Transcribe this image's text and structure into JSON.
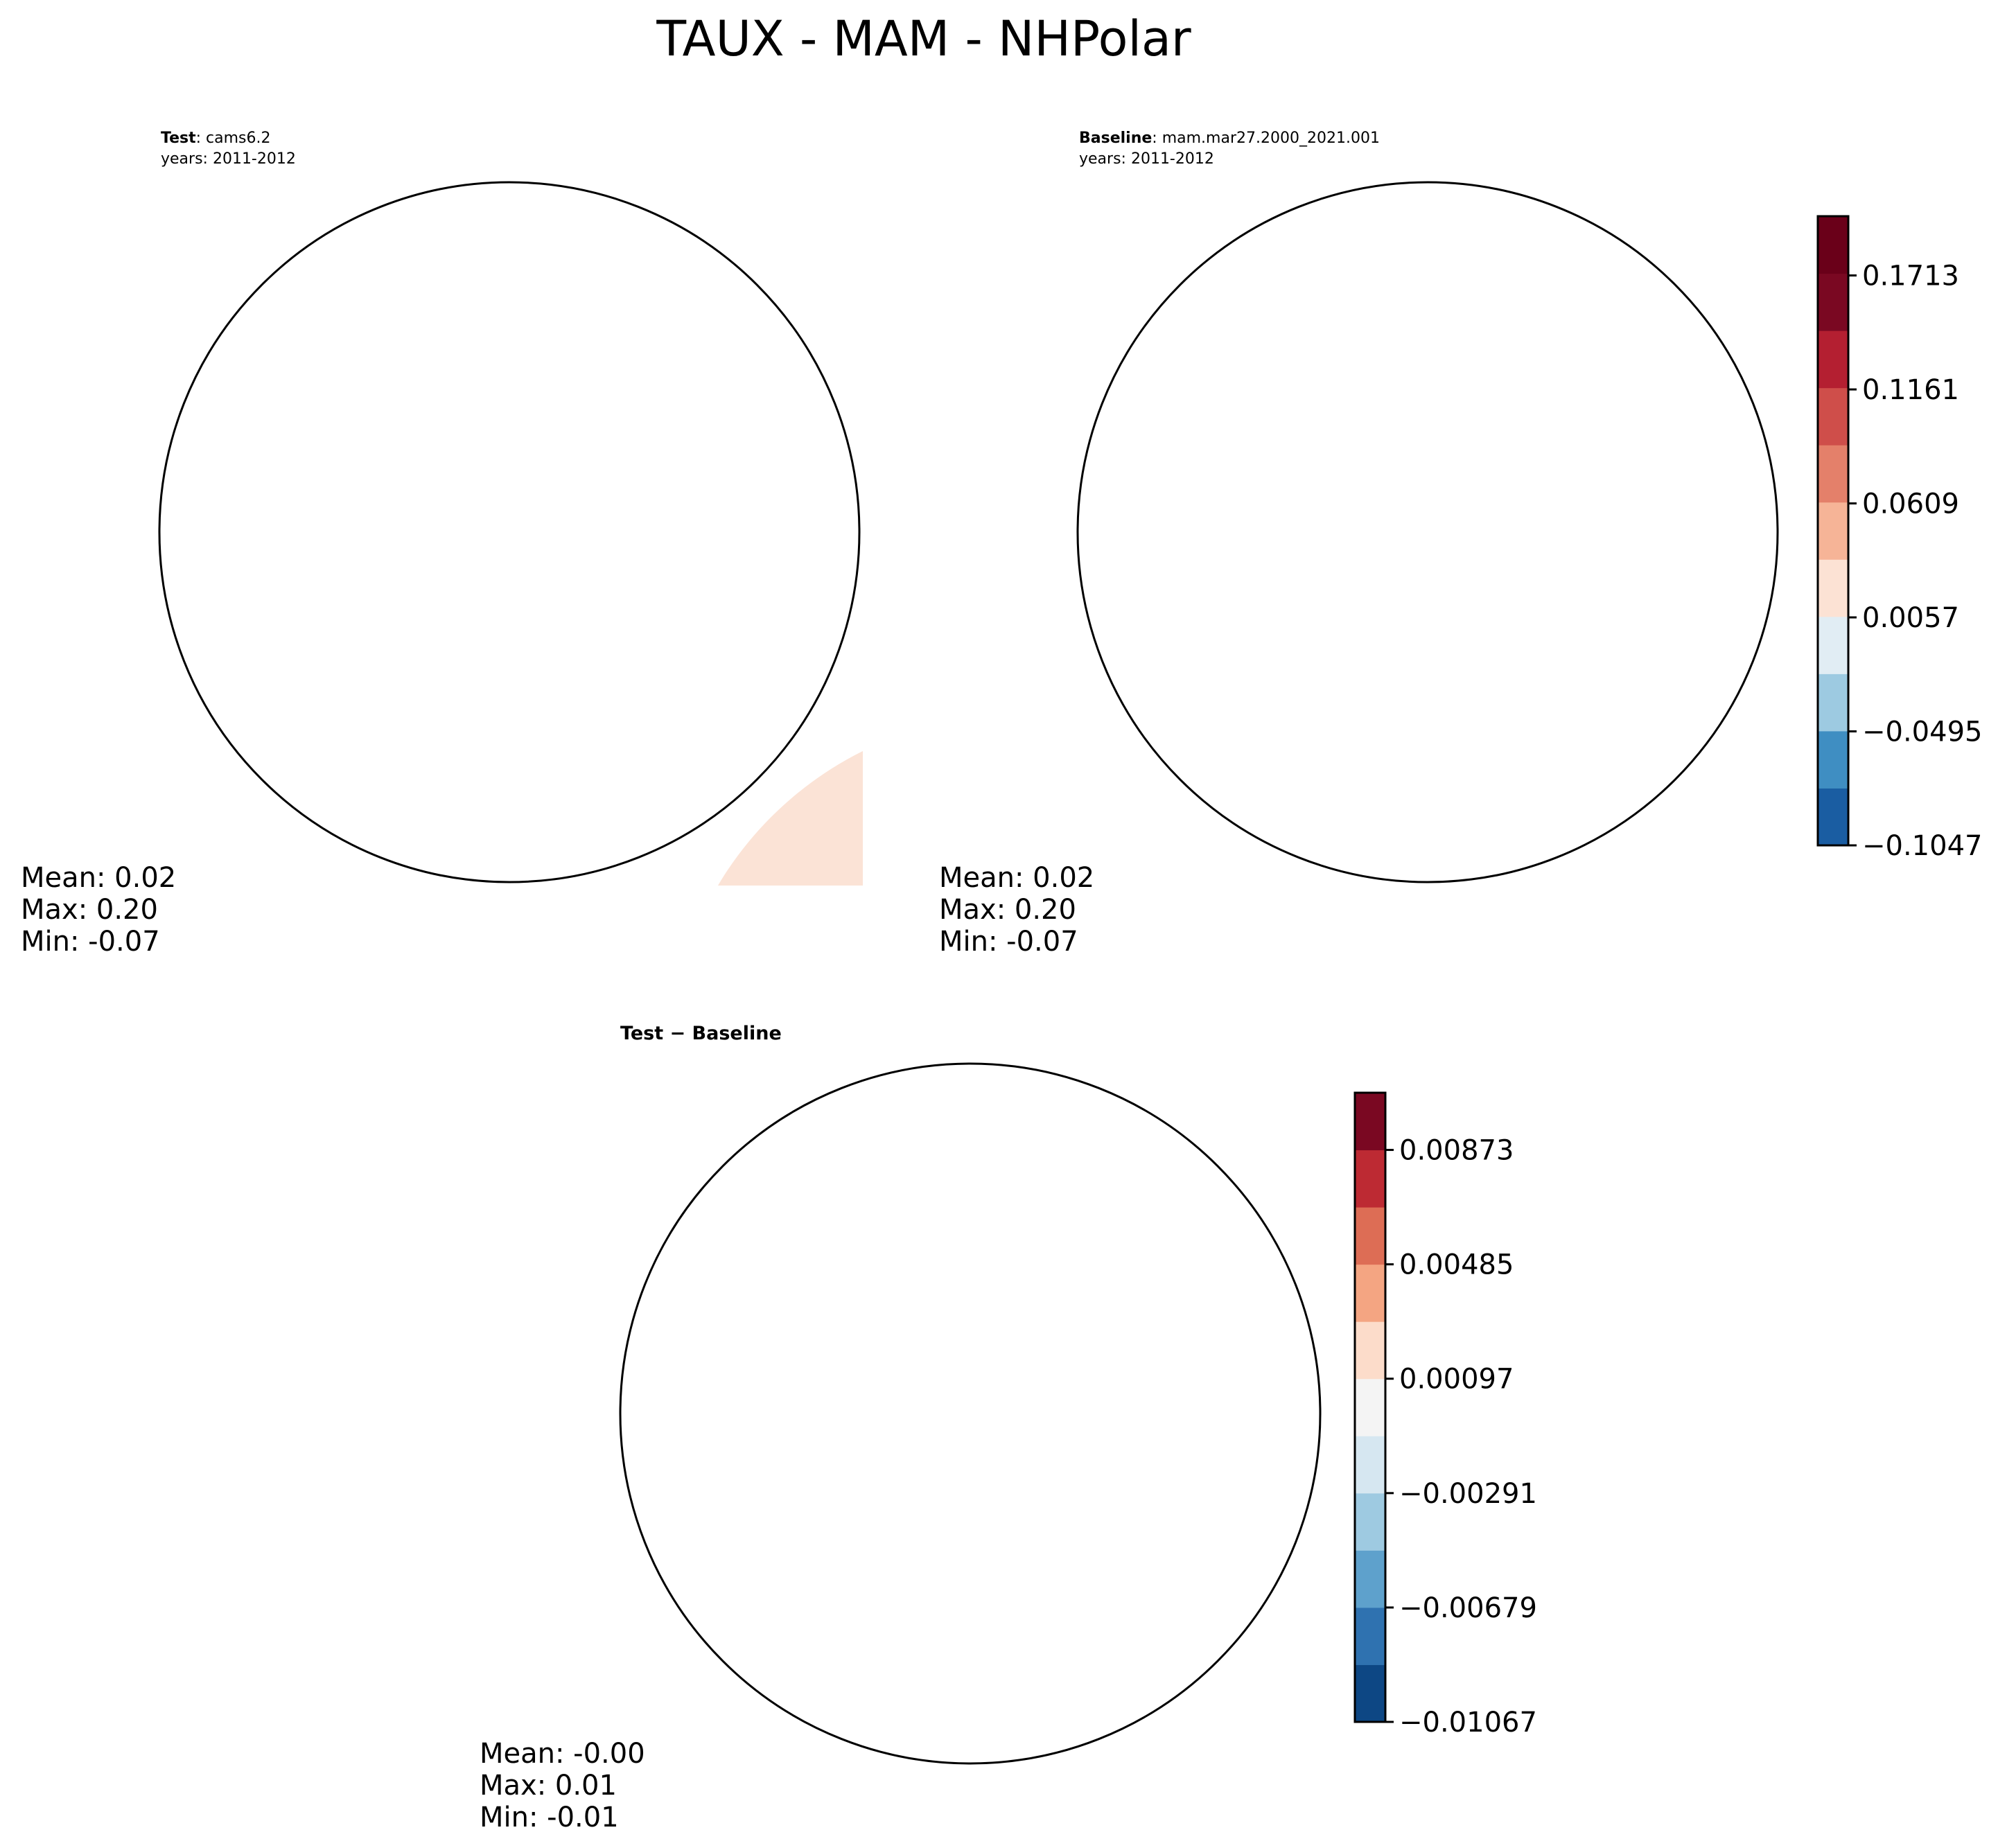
{
  "figure": {
    "title": "TAUX - MAM - NHPolar"
  },
  "chart_data": [
    {
      "type": "heatmap",
      "projection": "north-polar-stereographic",
      "panel": "test",
      "title_bold": "Test",
      "title_rest": ": cams6.2",
      "subtitle": "years: 2011-2012",
      "stats": {
        "mean": "Mean:  0.02",
        "max": "Max:  0.20",
        "min": "Min: -0.07"
      },
      "colorbar": "shared-main"
    },
    {
      "type": "heatmap",
      "projection": "north-polar-stereographic",
      "panel": "baseline",
      "title_bold": "Baseline",
      "title_rest": ": mam.mar27.2000_2021.001",
      "subtitle": "years: 2011-2012",
      "stats": {
        "mean": "Mean:  0.02",
        "max": "Max:  0.20",
        "min": "Min: -0.07"
      },
      "colorbar": "shared-main"
    },
    {
      "type": "heatmap",
      "projection": "north-polar-stereographic",
      "panel": "difference",
      "title": "Test − Baseline",
      "stats": {
        "mean": "Mean: -0.00",
        "max": "Max:  0.01",
        "min": "Min: -0.01"
      },
      "colorbar": "diff"
    }
  ],
  "colorbars": {
    "main": {
      "ticks": [
        "0.1713",
        "0.1161",
        "0.0609",
        "0.0057",
        "−0.0495",
        "−0.1047"
      ],
      "tick_values": [
        0.1713,
        0.1161,
        0.0609,
        0.0057,
        -0.0495,
        -0.1047
      ],
      "range": [
        -0.1047,
        0.2
      ],
      "levels": 11,
      "colors": [
        "#1a5da2",
        "#3f8ec2",
        "#9dcae1",
        "#e1edf4",
        "#fce2d4",
        "#f6b497",
        "#e4806a",
        "#cf4e4a",
        "#b41f31",
        "#7a0822",
        "#6a0019"
      ]
    },
    "diff": {
      "ticks": [
        "0.00873",
        "0.00485",
        "0.00097",
        "−0.00291",
        "−0.00679",
        "−0.01067"
      ],
      "tick_values": [
        0.00873,
        0.00485,
        0.00097,
        -0.00291,
        -0.00679,
        -0.01067
      ],
      "range": [
        -0.01067,
        0.01067
      ],
      "levels": 11,
      "colors": [
        "#0d4784",
        "#2f72b0",
        "#5ea1cc",
        "#9ecae1",
        "#d6e7f1",
        "#f4f4f4",
        "#fcdcca",
        "#f4a582",
        "#dd6d55",
        "#bd2a33",
        "#7a0822"
      ]
    }
  },
  "palette": {
    "land_outline": "#000000",
    "neutral": "#f4f4f4",
    "light_blue": "#dce9f1",
    "mid_blue": "#a8cde3",
    "blue": "#4b94c6",
    "dark_blue": "#1f67ad",
    "light_red": "#fbe3d6",
    "peach": "#f4b294",
    "salmon": "#e38366",
    "red": "#cf4f47",
    "dark_red": "#a51a2c"
  }
}
